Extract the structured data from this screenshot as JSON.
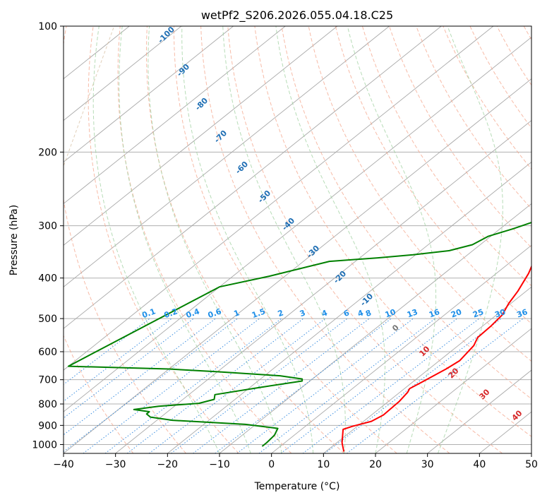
{
  "chart_data": {
    "type": "line",
    "title": "wetPf2_S206.2026.055.04.18.C25",
    "xlabel": "Temperature (°C)",
    "ylabel": "Pressure (hPa)",
    "xlim": [
      -40,
      50
    ],
    "ylim": [
      1050,
      100
    ],
    "x_ticks": [
      "−40",
      "−30",
      "−20",
      "−10",
      "0",
      "10",
      "20",
      "30",
      "40",
      "50"
    ],
    "y_ticks": [
      "100",
      "200",
      "300",
      "400",
      "500",
      "600",
      "700",
      "800",
      "900",
      "1000"
    ],
    "grid": true,
    "series": [
      {
        "name": "temperature",
        "color": "#ff0000",
        "points": [
          [
            13.5,
            1040
          ],
          [
            11,
            990
          ],
          [
            8,
            920
          ],
          [
            9,
            905
          ],
          [
            11.5,
            880
          ],
          [
            12.3,
            850
          ],
          [
            12.1,
            790
          ],
          [
            11.5,
            750
          ],
          [
            11,
            735
          ],
          [
            11.8,
            710
          ],
          [
            13.3,
            660
          ],
          [
            13.9,
            630
          ],
          [
            13,
            580
          ],
          [
            11.8,
            555
          ],
          [
            11.6,
            520
          ],
          [
            11.1,
            490
          ],
          [
            9.6,
            460
          ],
          [
            8.4,
            430
          ],
          [
            6.2,
            390
          ],
          [
            3.9,
            360
          ],
          [
            3.4,
            340
          ],
          [
            1.6,
            310
          ],
          [
            -1.2,
            280
          ],
          [
            -4,
            250
          ],
          [
            -4.5,
            225
          ],
          [
            -3.8,
            205
          ],
          [
            -1.5,
            185
          ],
          [
            2.5,
            165
          ],
          [
            4.5,
            152
          ],
          [
            6.5,
            140
          ],
          [
            8,
            130
          ],
          [
            9.7,
            120
          ],
          [
            11,
            110
          ],
          [
            13.5,
            100
          ]
        ]
      },
      {
        "name": "dewpoint",
        "color": "#008000",
        "points": [
          [
            -3.5,
            1010
          ],
          [
            -3.5,
            990
          ],
          [
            -3.8,
            950
          ],
          [
            -4.8,
            915
          ],
          [
            -12,
            895
          ],
          [
            -27,
            875
          ],
          [
            -32,
            860
          ],
          [
            -33.5,
            845
          ],
          [
            -33.5,
            835
          ],
          [
            -37,
            825
          ],
          [
            -33,
            810
          ],
          [
            -26,
            797
          ],
          [
            -24,
            780
          ],
          [
            -25,
            760
          ],
          [
            -18,
            730
          ],
          [
            -11.5,
            705
          ],
          [
            -12,
            697
          ],
          [
            -17,
            685
          ],
          [
            -30,
            670
          ],
          [
            -40,
            660
          ],
          [
            -60,
            650
          ],
          [
            -50,
            420
          ],
          [
            -43,
            396
          ],
          [
            -35,
            365
          ],
          [
            -26.5,
            358
          ],
          [
            -20.5,
            352
          ],
          [
            -14.5,
            344
          ],
          [
            -11.5,
            333
          ],
          [
            -10.5,
            318
          ],
          [
            -7.5,
            305
          ],
          [
            -4.5,
            290
          ],
          [
            -3.5,
            274
          ],
          [
            -3.9,
            248
          ],
          [
            -5.3,
            228
          ],
          [
            -6.1,
            214
          ],
          [
            -7.5,
            196
          ],
          [
            -8.7,
            182
          ],
          [
            -7.6,
            168
          ],
          [
            -5,
            152
          ],
          [
            -4,
            137
          ],
          [
            -2.5,
            125
          ],
          [
            -1,
            118
          ],
          [
            2,
            109
          ],
          [
            5,
            100
          ]
        ]
      }
    ],
    "mixing_ratio_labels": [
      "0.1",
      "0.2",
      "0.4",
      "0.6",
      "1",
      "1.5",
      "2",
      "3",
      "4",
      "6",
      "8",
      "10",
      "13",
      "16",
      "20",
      "25",
      "30",
      "36"
    ],
    "moist_adiabat_labels": [
      "-100",
      "-90",
      "-80",
      "-70",
      "-60",
      "-50",
      "-40",
      "-30",
      "-20",
      "-10"
    ],
    "dry_adiabat_labels": [
      "0",
      "10",
      "20",
      "30",
      "40"
    ],
    "extra_mixing_label": "4"
  }
}
